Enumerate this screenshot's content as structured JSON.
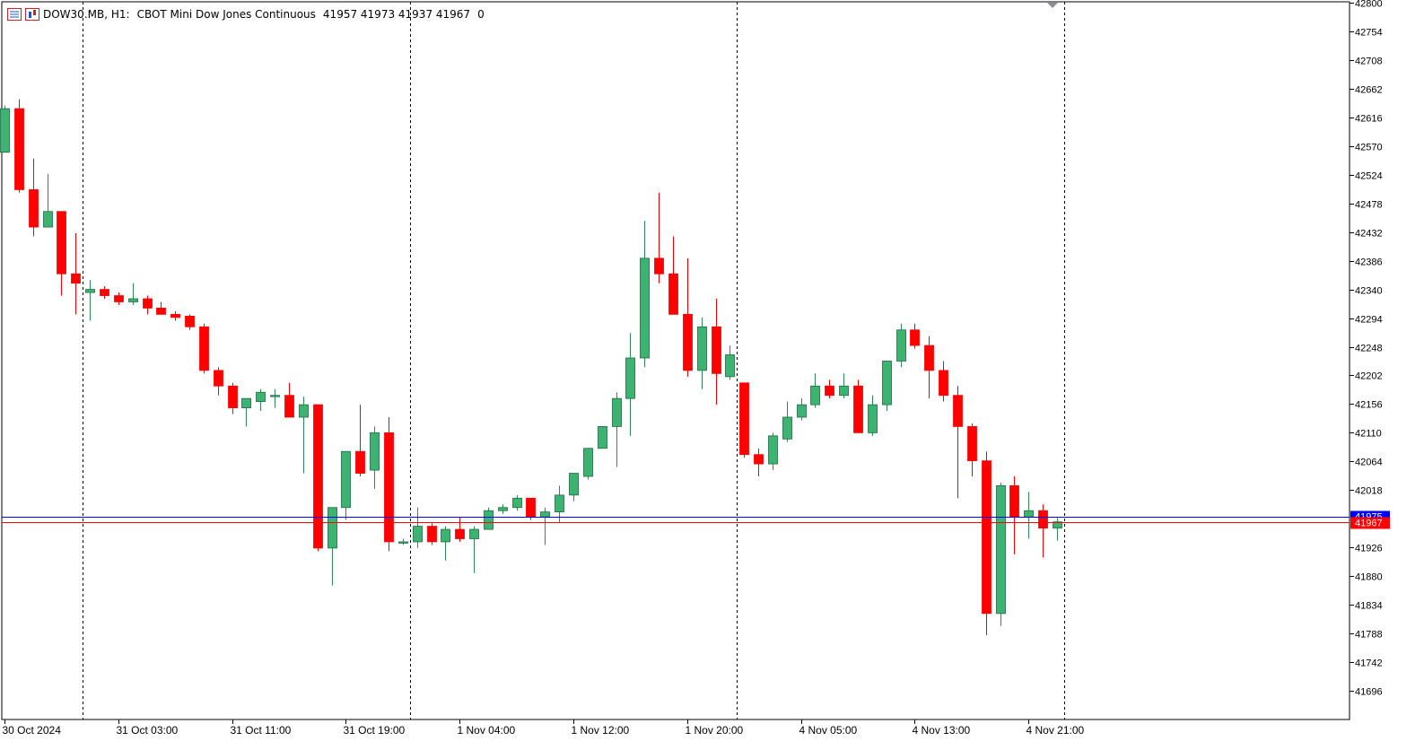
{
  "header": {
    "symbol": "DOW30.MB, H1:",
    "description": "CBOT Mini Dow Jones Continuous",
    "ohlc": "41957 41973 41937 41967",
    "volume": "0",
    "icons": [
      "list-icon",
      "chart-icon"
    ]
  },
  "colors": {
    "bull": "#3cb371",
    "bear": "#ff0000",
    "bid_line": "#ff0000",
    "ask_line": "#0000ff",
    "axis": "#000000",
    "grid_separator": "#000000",
    "background": "#ffffff"
  },
  "chart_data": {
    "type": "candlestick",
    "title": "DOW30.MB, H1: CBOT Mini Dow Jones Continuous",
    "timeframe": "H1",
    "y_axis": {
      "ticks": [
        42800,
        42754,
        42708,
        42662,
        42616,
        42570,
        42524,
        42478,
        42432,
        42386,
        42340,
        42294,
        42248,
        42202,
        42156,
        42110,
        42064,
        42018,
        41926,
        41880,
        41834,
        41788,
        41742,
        41696
      ],
      "ylim": [
        41650,
        42800
      ]
    },
    "x_axis": {
      "labels": [
        "30 Oct 2024",
        "31 Oct 03:00",
        "31 Oct 11:00",
        "31 Oct 19:00",
        "1 Nov 04:00",
        "1 Nov 12:00",
        "1 Nov 20:00",
        "4 Nov 05:00",
        "4 Nov 13:00",
        "4 Nov 21:00"
      ],
      "label_bar_index": [
        0,
        8,
        16,
        24,
        32,
        40,
        48,
        56,
        64,
        72
      ]
    },
    "session_separators_bar_index": [
      5.5,
      28.5,
      51.5,
      74.5
    ],
    "bid_price": {
      "value": 41967,
      "label": "41967"
    },
    "ask_price": {
      "value": 41975,
      "label": "41975"
    },
    "candles": [
      {
        "o": 42560,
        "h": 42635,
        "l": 42560,
        "c": 42630
      },
      {
        "o": 42630,
        "h": 42645,
        "l": 42495,
        "c": 42500
      },
      {
        "o": 42500,
        "h": 42550,
        "l": 42425,
        "c": 42440
      },
      {
        "o": 42440,
        "h": 42525,
        "l": 42440,
        "c": 42465
      },
      {
        "o": 42465,
        "h": 42465,
        "l": 42330,
        "c": 42365
      },
      {
        "o": 42365,
        "h": 42430,
        "l": 42300,
        "c": 42350
      },
      {
        "o": 42335,
        "h": 42355,
        "l": 42290,
        "c": 42340
      },
      {
        "o": 42340,
        "h": 42345,
        "l": 42325,
        "c": 42330
      },
      {
        "o": 42330,
        "h": 42335,
        "l": 42315,
        "c": 42320
      },
      {
        "o": 42320,
        "h": 42350,
        "l": 42315,
        "c": 42325
      },
      {
        "o": 42325,
        "h": 42330,
        "l": 42300,
        "c": 42310
      },
      {
        "o": 42310,
        "h": 42320,
        "l": 42300,
        "c": 42300
      },
      {
        "o": 42300,
        "h": 42305,
        "l": 42290,
        "c": 42295
      },
      {
        "o": 42297,
        "h": 42300,
        "l": 42275,
        "c": 42280
      },
      {
        "o": 42280,
        "h": 42285,
        "l": 42205,
        "c": 42210
      },
      {
        "o": 42210,
        "h": 42215,
        "l": 42170,
        "c": 42185
      },
      {
        "o": 42185,
        "h": 42190,
        "l": 42140,
        "c": 42150
      },
      {
        "o": 42150,
        "h": 42165,
        "l": 42120,
        "c": 42165
      },
      {
        "o": 42160,
        "h": 42180,
        "l": 42145,
        "c": 42175
      },
      {
        "o": 42170,
        "h": 42180,
        "l": 42150,
        "c": 42170
      },
      {
        "o": 42170,
        "h": 42190,
        "l": 42135,
        "c": 42135
      },
      {
        "o": 42135,
        "h": 42168,
        "l": 42045,
        "c": 42155
      },
      {
        "o": 42155,
        "h": 42155,
        "l": 41920,
        "c": 41925
      },
      {
        "o": 41925,
        "h": 41990,
        "l": 41865,
        "c": 41990
      },
      {
        "o": 41990,
        "h": 42080,
        "l": 41970,
        "c": 42080
      },
      {
        "o": 42080,
        "h": 42155,
        "l": 42040,
        "c": 42045
      },
      {
        "o": 42050,
        "h": 42120,
        "l": 42020,
        "c": 42110
      },
      {
        "o": 42110,
        "h": 42135,
        "l": 41920,
        "c": 41935
      },
      {
        "o": 41935,
        "h": 41940,
        "l": 41930,
        "c": 41935
      },
      {
        "o": 41935,
        "h": 41990,
        "l": 41925,
        "c": 41960
      },
      {
        "o": 41960,
        "h": 41965,
        "l": 41930,
        "c": 41935
      },
      {
        "o": 41935,
        "h": 41960,
        "l": 41905,
        "c": 41955
      },
      {
        "o": 41955,
        "h": 41975,
        "l": 41935,
        "c": 41940
      },
      {
        "o": 41940,
        "h": 41960,
        "l": 41885,
        "c": 41955
      },
      {
        "o": 41955,
        "h": 41990,
        "l": 41955,
        "c": 41985
      },
      {
        "o": 41985,
        "h": 41995,
        "l": 41980,
        "c": 41990
      },
      {
        "o": 41990,
        "h": 42010,
        "l": 41985,
        "c": 42005
      },
      {
        "o": 42005,
        "h": 42005,
        "l": 41970,
        "c": 41975
      },
      {
        "o": 41975,
        "h": 41990,
        "l": 41930,
        "c": 41983
      },
      {
        "o": 41983,
        "h": 42025,
        "l": 41965,
        "c": 42010
      },
      {
        "o": 42010,
        "h": 42045,
        "l": 42000,
        "c": 42045
      },
      {
        "o": 42040,
        "h": 42085,
        "l": 42035,
        "c": 42085
      },
      {
        "o": 42085,
        "h": 42120,
        "l": 42085,
        "c": 42120
      },
      {
        "o": 42120,
        "h": 42175,
        "l": 42055,
        "c": 42165
      },
      {
        "o": 42165,
        "h": 42270,
        "l": 42105,
        "c": 42230
      },
      {
        "o": 42230,
        "h": 42450,
        "l": 42215,
        "c": 42390
      },
      {
        "o": 42390,
        "h": 42495,
        "l": 42350,
        "c": 42365
      },
      {
        "o": 42365,
        "h": 42425,
        "l": 42300,
        "c": 42300
      },
      {
        "o": 42300,
        "h": 42390,
        "l": 42200,
        "c": 42210
      },
      {
        "o": 42210,
        "h": 42295,
        "l": 42180,
        "c": 42280
      },
      {
        "o": 42280,
        "h": 42325,
        "l": 42155,
        "c": 42205
      },
      {
        "o": 42200,
        "h": 42250,
        "l": 42195,
        "c": 42235
      },
      {
        "o": 42190,
        "h": 42190,
        "l": 42070,
        "c": 42075
      },
      {
        "o": 42075,
        "h": 42085,
        "l": 42040,
        "c": 42060
      },
      {
        "o": 42060,
        "h": 42110,
        "l": 42050,
        "c": 42105
      },
      {
        "o": 42100,
        "h": 42160,
        "l": 42095,
        "c": 42135
      },
      {
        "o": 42135,
        "h": 42165,
        "l": 42130,
        "c": 42155
      },
      {
        "o": 42155,
        "h": 42205,
        "l": 42150,
        "c": 42185
      },
      {
        "o": 42185,
        "h": 42195,
        "l": 42165,
        "c": 42170
      },
      {
        "o": 42170,
        "h": 42205,
        "l": 42165,
        "c": 42185
      },
      {
        "o": 42185,
        "h": 42195,
        "l": 42110,
        "c": 42110
      },
      {
        "o": 42110,
        "h": 42170,
        "l": 42105,
        "c": 42155
      },
      {
        "o": 42155,
        "h": 42225,
        "l": 42145,
        "c": 42225
      },
      {
        "o": 42225,
        "h": 42285,
        "l": 42215,
        "c": 42275
      },
      {
        "o": 42275,
        "h": 42285,
        "l": 42245,
        "c": 42250
      },
      {
        "o": 42250,
        "h": 42265,
        "l": 42165,
        "c": 42210
      },
      {
        "o": 42210,
        "h": 42225,
        "l": 42160,
        "c": 42170
      },
      {
        "o": 42170,
        "h": 42185,
        "l": 42005,
        "c": 42120
      },
      {
        "o": 42120,
        "h": 42125,
        "l": 42040,
        "c": 42065
      },
      {
        "o": 42065,
        "h": 42080,
        "l": 41785,
        "c": 41820
      },
      {
        "o": 41820,
        "h": 42030,
        "l": 41800,
        "c": 42025
      },
      {
        "o": 42025,
        "h": 42040,
        "l": 41915,
        "c": 41975
      },
      {
        "o": 41975,
        "h": 42015,
        "l": 41940,
        "c": 41985
      },
      {
        "o": 41985,
        "h": 41995,
        "l": 41910,
        "c": 41957
      },
      {
        "o": 41957,
        "h": 41973,
        "l": 41937,
        "c": 41967
      }
    ]
  }
}
